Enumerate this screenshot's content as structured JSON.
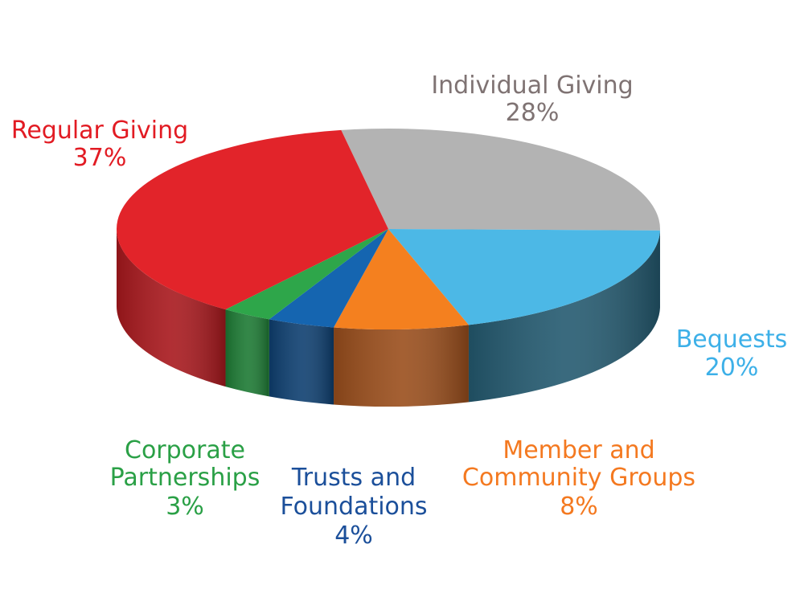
{
  "chart_data": {
    "type": "pie",
    "style": "3d",
    "title": "",
    "slices": [
      {
        "label": "Individual Giving",
        "value": 28,
        "value_label": "28%",
        "color": "#b3b3b3",
        "side": "#8a8a8a",
        "text": "#7f7373"
      },
      {
        "label": "Bequests",
        "value": 20,
        "value_label": "20%",
        "color": "#4cb8e6",
        "side": "#245a70",
        "text": "#3db0e8"
      },
      {
        "label": "Member and Community Groups",
        "value": 8,
        "value_label": "8%",
        "color": "#f4801f",
        "side": "#9a4e1c",
        "text": "#f47920"
      },
      {
        "label": "Trusts and Foundations",
        "value": 4,
        "value_label": "4%",
        "color": "#1565b0",
        "side": "#0e3f70",
        "text": "#1b4f9a"
      },
      {
        "label": "Corporate Partnerships",
        "value": 3,
        "value_label": "3%",
        "color": "#2ea64a",
        "side": "#1d7a34",
        "text": "#2aa046"
      },
      {
        "label": "Regular Giving",
        "value": 37,
        "value_label": "37%",
        "color": "#e2242a",
        "side": "#a8181d",
        "text": "#e21b23"
      }
    ]
  }
}
